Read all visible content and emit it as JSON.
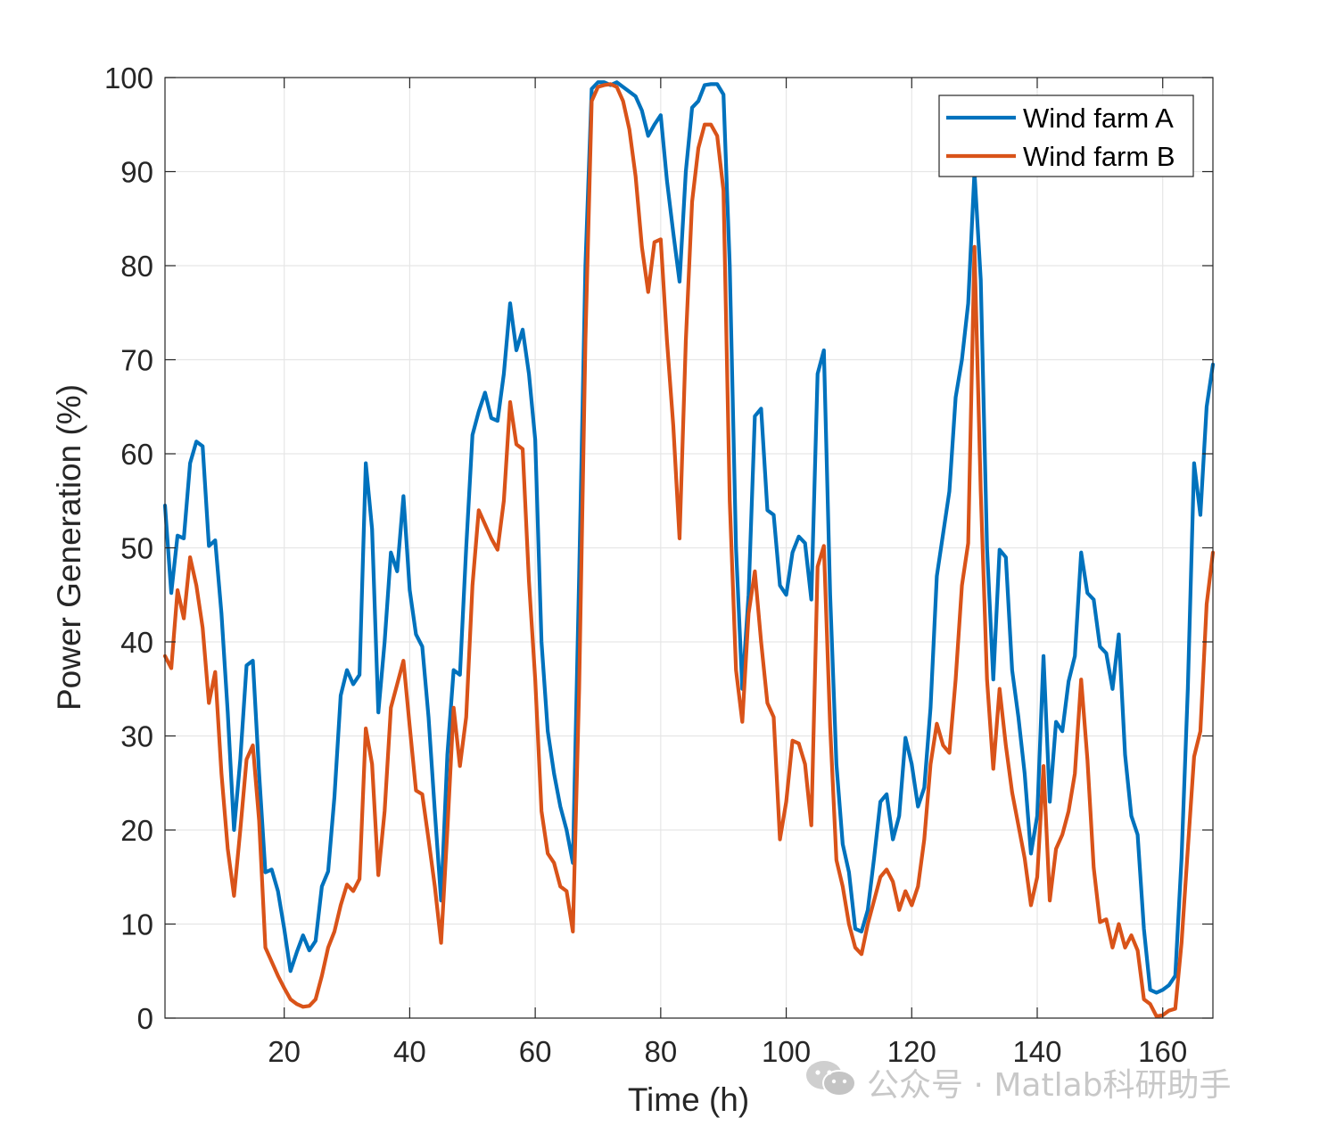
{
  "chart_data": {
    "type": "line",
    "xlabel": "Time (h)",
    "ylabel": "Power Generation (%)",
    "xlim": [
      1,
      168
    ],
    "ylim": [
      0,
      100
    ],
    "xticks": [
      20,
      40,
      60,
      80,
      100,
      120,
      140,
      160
    ],
    "yticks": [
      0,
      10,
      20,
      30,
      40,
      50,
      60,
      70,
      80,
      90,
      100
    ],
    "grid": true,
    "legend_location": "top-right",
    "x_start": 1,
    "series": [
      {
        "name": "Wind farm A",
        "color": "#0072BD",
        "values": [
          54.5,
          45.2,
          51.3,
          51.0,
          59.0,
          61.3,
          60.8,
          50.2,
          50.8,
          43.0,
          32.5,
          20.0,
          27.5,
          37.5,
          38.0,
          26.0,
          15.5,
          15.8,
          13.5,
          9.5,
          5.0,
          7.0,
          8.8,
          7.2,
          8.2,
          14.0,
          15.6,
          23.5,
          34.3,
          37.0,
          35.5,
          36.5,
          59.0,
          52.0,
          32.5,
          40.0,
          49.5,
          47.5,
          55.5,
          45.5,
          40.8,
          39.5,
          32.0,
          22.0,
          12.5,
          28.0,
          37.0,
          36.5,
          50.0,
          62.0,
          64.5,
          66.5,
          63.8,
          63.5,
          68.5,
          76.0,
          71.0,
          73.2,
          68.5,
          61.5,
          40.0,
          30.5,
          26.0,
          22.5,
          20.0,
          16.5,
          47.0,
          80.0,
          98.8,
          99.5,
          99.5,
          99.2,
          99.5,
          99.0,
          98.5,
          98.0,
          96.5,
          93.8,
          95.0,
          96.0,
          89.0,
          83.5,
          78.3,
          90.0,
          96.8,
          97.5,
          99.2,
          99.3,
          99.3,
          98.2,
          80.0,
          50.0,
          35.0,
          45.0,
          64.0,
          64.8,
          54.0,
          53.5,
          46.0,
          45.0,
          49.5,
          51.2,
          50.5,
          44.5,
          68.5,
          71.0,
          45.0,
          27.0,
          18.5,
          15.5,
          9.5,
          9.2,
          11.5,
          17.0,
          23.0,
          23.8,
          19.0,
          21.5,
          29.8,
          27.0,
          22.5,
          24.5,
          33.0,
          47.0,
          51.5,
          56.0,
          66.0,
          70.0,
          76.0,
          90.0,
          78.5,
          50.0,
          36.0,
          49.8,
          49.0,
          37.0,
          32.0,
          26.0,
          17.5,
          21.5,
          38.5,
          23.0,
          31.5,
          30.5,
          35.8,
          38.5,
          49.5,
          45.2,
          44.5,
          39.5,
          38.8,
          35.0,
          40.8,
          28.0,
          21.5,
          19.5,
          9.5,
          3.0,
          2.7,
          3.0,
          3.5,
          4.5,
          17.0,
          35.0,
          59.0,
          53.5,
          65.0,
          69.5
        ]
      },
      {
        "name": "Wind farm B",
        "color": "#D95319",
        "values": [
          38.5,
          37.2,
          45.5,
          42.5,
          49.0,
          46.0,
          41.5,
          33.5,
          36.8,
          26.0,
          18.0,
          13.0,
          20.0,
          27.5,
          29.0,
          21.0,
          7.5,
          6.0,
          4.5,
          3.2,
          2.0,
          1.5,
          1.2,
          1.3,
          2.0,
          4.5,
          7.5,
          9.2,
          12.0,
          14.2,
          13.5,
          14.8,
          30.8,
          27.0,
          15.2,
          22.0,
          33.0,
          35.5,
          38.0,
          31.0,
          24.2,
          23.8,
          19.0,
          14.0,
          8.0,
          20.0,
          33.0,
          26.8,
          32.0,
          46.0,
          54.0,
          52.5,
          51.0,
          49.8,
          55.0,
          65.5,
          61.0,
          60.5,
          46.5,
          36.0,
          22.0,
          17.5,
          16.5,
          14.0,
          13.5,
          9.2,
          35.0,
          72.0,
          97.5,
          99.0,
          99.2,
          99.3,
          99.0,
          97.5,
          94.5,
          89.5,
          82.0,
          77.2,
          82.5,
          82.8,
          72.0,
          63.0,
          51.0,
          72.0,
          86.8,
          92.5,
          95.0,
          95.0,
          93.8,
          88.0,
          55.0,
          37.0,
          31.5,
          43.0,
          47.5,
          40.0,
          33.5,
          32.0,
          19.0,
          23.0,
          29.5,
          29.2,
          27.0,
          20.5,
          48.0,
          50.2,
          31.0,
          16.8,
          14.0,
          10.0,
          7.5,
          6.8,
          10.0,
          12.5,
          15.0,
          15.8,
          14.5,
          11.5,
          13.5,
          12.0,
          14.0,
          19.0,
          27.0,
          31.3,
          29.0,
          28.2,
          36.0,
          46.0,
          50.5,
          82.0,
          56.0,
          36.0,
          26.5,
          35.0,
          29.0,
          24.0,
          20.5,
          17.0,
          12.0,
          15.0,
          26.8,
          12.5,
          18.0,
          19.5,
          22.0,
          26.0,
          36.0,
          27.5,
          16.0,
          10.2,
          10.5,
          7.5,
          10.0,
          7.5,
          8.8,
          7.2,
          2.0,
          1.5,
          0.2,
          0.3,
          0.8,
          1.0,
          8.0,
          18.0,
          27.8,
          30.5,
          44.0,
          49.5
        ]
      }
    ]
  },
  "watermark": {
    "icon": "wechat-icon",
    "text": "公众号 · Matlab科研助手"
  }
}
